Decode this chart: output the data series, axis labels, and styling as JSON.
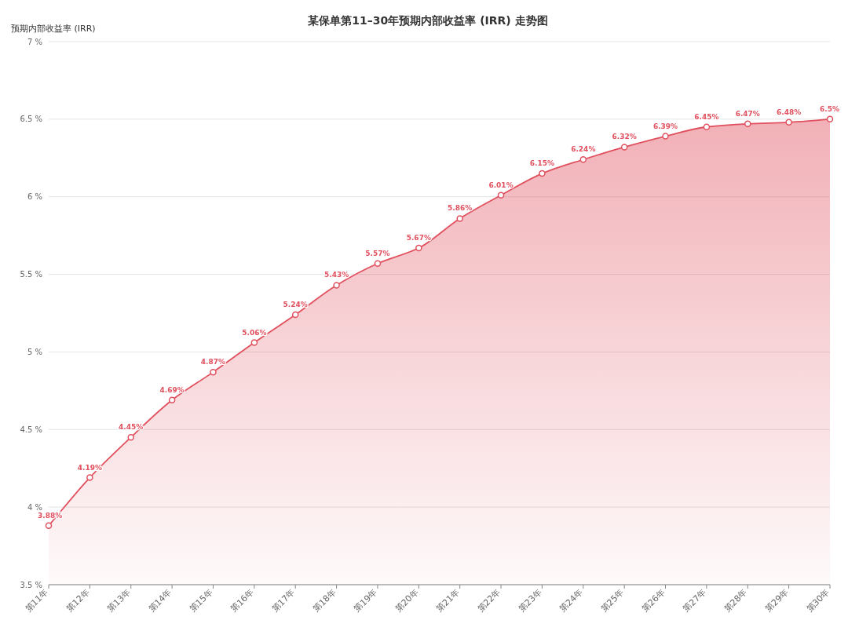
{
  "chart_data": {
    "type": "area",
    "title": "某保单第11–30年预期内部收益率 (IRR) 走势图",
    "ylabel": "预期内部收益率 (IRR)",
    "categories": [
      "第11年",
      "第12年",
      "第13年",
      "第14年",
      "第15年",
      "第16年",
      "第17年",
      "第18年",
      "第19年",
      "第20年",
      "第21年",
      "第22年",
      "第23年",
      "第24年",
      "第25年",
      "第26年",
      "第27年",
      "第28年",
      "第29年",
      "第30年"
    ],
    "series": [
      {
        "color": "#e0505e",
        "values": [
          3.88,
          4.19,
          4.45,
          4.69,
          4.87,
          5.06,
          5.24,
          5.43,
          5.57,
          5.67,
          5.86,
          6.01,
          6.15,
          6.24,
          6.32,
          6.39,
          6.45,
          6.47,
          6.48,
          6.5
        ],
        "value_labels": [
          "3.88%",
          "4.19%",
          "4.45%",
          "4.69%",
          "4.87%",
          "5.06%",
          "5.24%",
          "5.43%",
          "5.57%",
          "5.67%",
          "5.86%",
          "6.01%",
          "6.15%",
          "6.24%",
          "6.32%",
          "6.39%",
          "6.45%",
          "6.47%",
          "6.48%",
          "6.5%"
        ]
      }
    ],
    "ylim": [
      3.5,
      7
    ],
    "yticks": [
      {
        "value": 3.5,
        "label": "3.5 %"
      },
      {
        "value": 4,
        "label": "4 %"
      },
      {
        "value": 4.5,
        "label": "4.5 %"
      },
      {
        "value": 5,
        "label": "5 %"
      },
      {
        "value": 5.5,
        "label": "5.5 %"
      },
      {
        "value": 6,
        "label": "6 %"
      },
      {
        "value": 6.5,
        "label": "6.5 %"
      },
      {
        "value": 7,
        "label": "7 %"
      }
    ],
    "grid": "y",
    "marker": "circle"
  }
}
